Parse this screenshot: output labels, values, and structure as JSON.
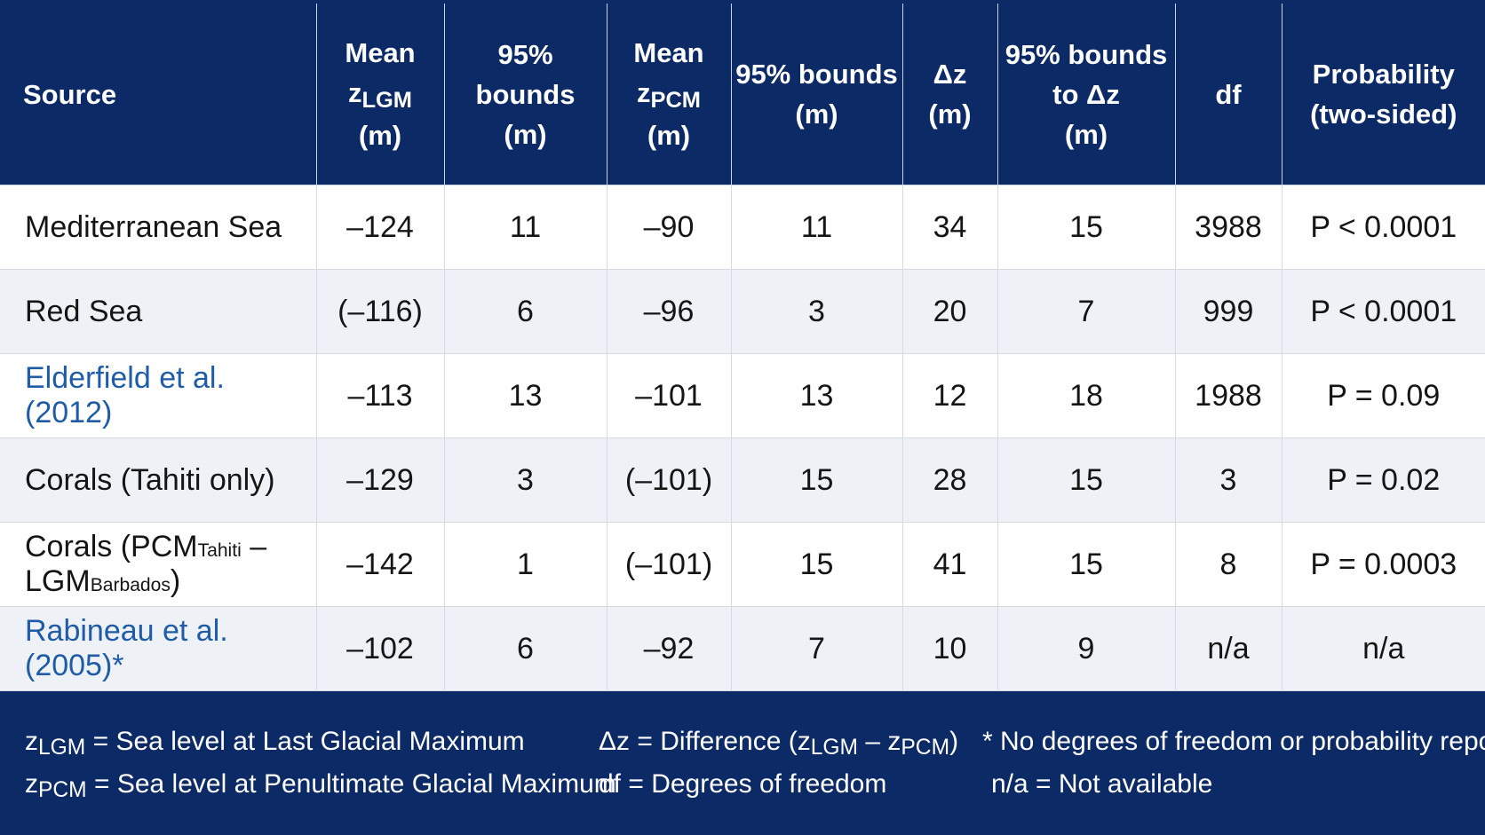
{
  "colors": {
    "header_bg": "#0c2a66",
    "row_alt": "#eef2f6",
    "link": "#1f5ba6"
  },
  "headers": {
    "source": "Source",
    "mean_lgm": {
      "line1": "Mean",
      "var": "z",
      "sub": "LGM",
      "unit": "(m)"
    },
    "bounds1": {
      "line1": "95% bounds",
      "line2": "(m)"
    },
    "mean_pcm": {
      "line1": "Mean",
      "var": "z",
      "sub": "PCM",
      "unit": "(m)"
    },
    "bounds2": {
      "line1": "95% bounds",
      "line2": "(m)"
    },
    "dz": {
      "line1": "Δz",
      "line2": "(m)"
    },
    "bounds_dz": {
      "line1": "95% bounds",
      "line2": "to Δz",
      "line3": "(m)"
    },
    "df": "df",
    "prob": {
      "line1": "Probability",
      "line2": "(two-sided)"
    }
  },
  "rows": [
    {
      "source": "Mediterranean Sea",
      "z_lgm": "–124",
      "b1": "11",
      "z_pcm": "–90",
      "b2": "11",
      "dz": "34",
      "bdz": "15",
      "df": "3988",
      "p": "P < 0.0001"
    },
    {
      "source": "Red Sea",
      "z_lgm": "(–116)",
      "b1": "6",
      "z_pcm": "–96",
      "b2": "3",
      "dz": "20",
      "bdz": "7",
      "df": "999",
      "p": "P < 0.0001"
    },
    {
      "source": "Elderfield et al. (2012)",
      "z_lgm": "–113",
      "b1": "13",
      "z_pcm": "–101",
      "b2": "13",
      "dz": "12",
      "bdz": "18",
      "df": "1988",
      "p": "P = 0.09"
    },
    {
      "source": "Corals (Tahiti only)",
      "z_lgm": "–129",
      "b1": "3",
      "z_pcm": "(–101)",
      "b2": "15",
      "dz": "28",
      "bdz": "15",
      "df": "3",
      "p": "P = 0.02"
    },
    {
      "source_parts": {
        "a": "Corals (PCM",
        "sub1": "Tahiti",
        "b": " – LGM",
        "sub2": "Barbados",
        "c": ")"
      },
      "z_lgm": "–142",
      "b1": "1",
      "z_pcm": "(–101)",
      "b2": "15",
      "dz": "41",
      "bdz": "15",
      "df": "8",
      "p": "P = 0.0003"
    },
    {
      "source": "Rabineau et al. (2005)*",
      "z_lgm": "–102",
      "b1": "6",
      "z_pcm": "–92",
      "b2": "7",
      "dz": "10",
      "bdz": "9",
      "df": "n/a",
      "p": "n/a"
    }
  ],
  "legend": {
    "zlgm": {
      "var": "z",
      "sub": "LGM",
      "text": " = Sea level at Last Glacial Maximum"
    },
    "zpcm": {
      "var": "z",
      "sub": "PCM",
      "text": " = Sea level at Penultimate Glacial Maximum"
    },
    "dz": {
      "pre": "Δz = Difference (",
      "var1": "z",
      "sub1": "LGM",
      "mid": " – ",
      "var2": "z",
      "sub2": "PCM",
      "post": ")"
    },
    "df": "df  = Degrees of freedom",
    "star": "* No degrees of freedom or probability reported",
    "na": "n/a = Not available"
  }
}
